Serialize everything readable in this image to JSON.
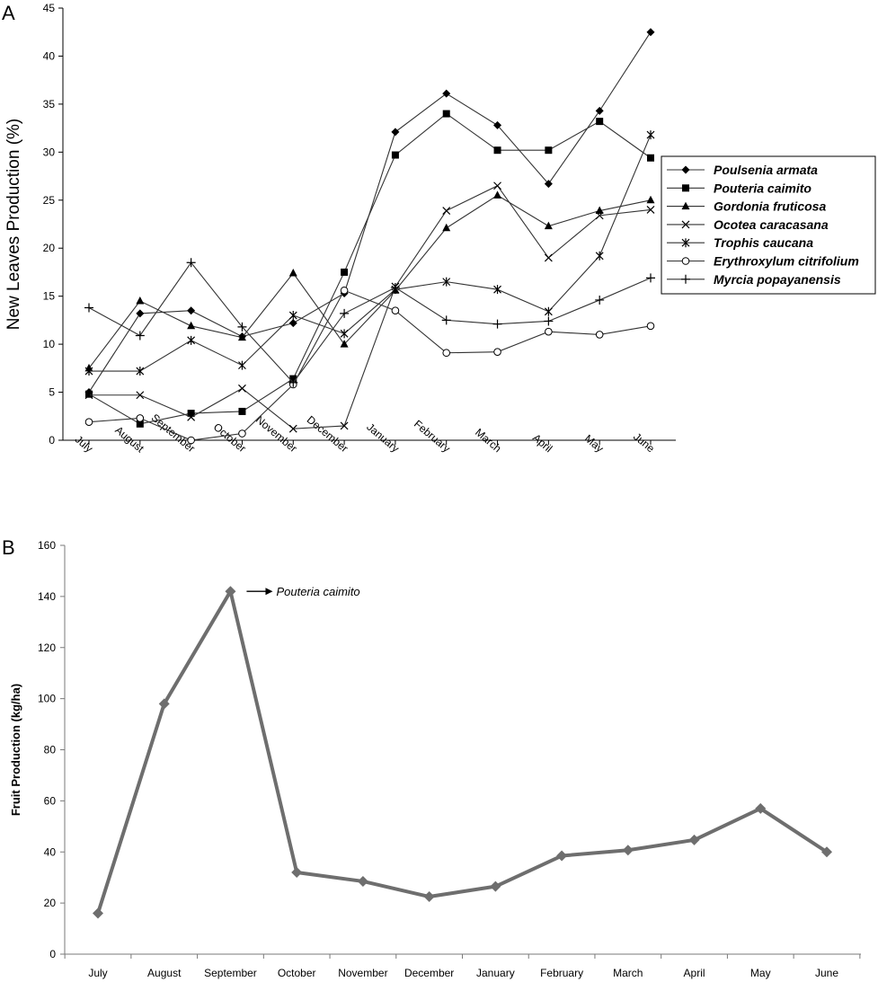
{
  "chart_data": [
    {
      "panel": "A",
      "type": "line",
      "title": "",
      "xlabel": "",
      "ylabel": "New Leaves Production (%)",
      "ylim": [
        0,
        45
      ],
      "yticks": [
        0,
        5,
        10,
        15,
        20,
        25,
        30,
        35,
        40,
        45
      ],
      "categories": [
        "July",
        "August",
        "September",
        "October",
        "November",
        "December",
        "January",
        "February",
        "March",
        "April",
        "May",
        "June"
      ],
      "legend_position": "right",
      "series": [
        {
          "name": "Poulsenia armata",
          "marker": "diamond",
          "values": [
            5.0,
            13.2,
            13.5,
            10.8,
            12.2,
            15.3,
            32.1,
            36.1,
            32.8,
            26.7,
            34.3,
            42.5
          ]
        },
        {
          "name": "Pouteria caimito",
          "marker": "square",
          "values": [
            4.8,
            1.7,
            2.8,
            3.0,
            6.4,
            17.5,
            29.7,
            34.0,
            30.2,
            30.2,
            33.2,
            29.4
          ]
        },
        {
          "name": "Gordonia fruticosa",
          "marker": "triangle",
          "values": [
            7.5,
            14.5,
            11.9,
            10.7,
            17.4,
            10.0,
            15.6,
            22.1,
            25.5,
            22.3,
            23.9,
            25.0
          ]
        },
        {
          "name": "Ocotea caracasana",
          "marker": "x",
          "values": [
            4.7,
            4.7,
            2.4,
            5.4,
            1.2,
            1.5,
            16.0,
            23.9,
            26.5,
            19.0,
            23.4,
            24.0
          ]
        },
        {
          "name": "Trophis caucana",
          "marker": "star",
          "values": [
            7.2,
            7.2,
            10.4,
            7.8,
            13.0,
            11.1,
            15.7,
            16.5,
            15.7,
            13.4,
            19.2,
            31.8
          ]
        },
        {
          "name": "Erythroxylum citrifolium",
          "marker": "circle",
          "values": [
            1.9,
            2.3,
            0.0,
            0.7,
            5.8,
            15.6,
            13.5,
            9.1,
            9.2,
            11.3,
            11.0,
            11.9
          ]
        },
        {
          "name": "Myrcia popayanensis",
          "marker": "plus",
          "values": [
            13.8,
            10.9,
            18.5,
            11.8,
            6.0,
            13.2,
            15.9,
            12.5,
            12.1,
            12.4,
            14.6,
            16.9
          ]
        }
      ]
    },
    {
      "panel": "B",
      "type": "line",
      "title": "",
      "xlabel": "",
      "ylabel": "Fruit Production (kg/ha)",
      "ylim": [
        0,
        160
      ],
      "yticks": [
        0,
        20,
        40,
        60,
        80,
        100,
        120,
        140,
        160
      ],
      "categories": [
        "July",
        "August",
        "September",
        "October",
        "November",
        "December",
        "January",
        "February",
        "March",
        "April",
        "May",
        "June"
      ],
      "grid": false,
      "color": "#6e6e6e",
      "series": [
        {
          "name": "",
          "marker": "diamond",
          "values": [
            16,
            98,
            142,
            32,
            28.5,
            22.5,
            26.5,
            38.5,
            40.7,
            44.7,
            57,
            40
          ]
        }
      ],
      "annotation": {
        "text": "Pouteria caimito",
        "category": "September"
      }
    }
  ]
}
